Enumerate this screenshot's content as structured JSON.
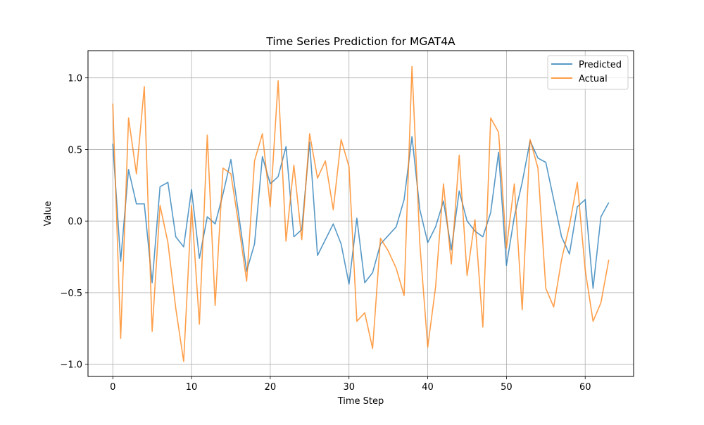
{
  "chart_data": {
    "type": "line",
    "title": "Time Series Prediction for MGAT4A",
    "xlabel": "Time Step",
    "ylabel": "Value",
    "xlim": [
      -3.15,
      66.15
    ],
    "ylim": [
      -1.085,
      1.19
    ],
    "x_ticks": [
      0,
      10,
      20,
      30,
      40,
      50,
      60
    ],
    "y_ticks": [
      -1.0,
      -0.5,
      0.0,
      0.5,
      1.0
    ],
    "y_tick_labels": [
      "−1.0",
      "−0.5",
      "0.0",
      "0.5",
      "1.0"
    ],
    "grid": true,
    "legend_position": "top-right",
    "series": [
      {
        "name": "Predicted",
        "color": "#1f77b4",
        "values": [
          0.54,
          -0.28,
          0.36,
          0.12,
          0.12,
          -0.43,
          0.24,
          0.27,
          -0.11,
          -0.18,
          0.22,
          -0.26,
          0.03,
          -0.02,
          0.19,
          0.43,
          0.04,
          -0.35,
          -0.16,
          0.45,
          0.26,
          0.31,
          0.52,
          -0.11,
          -0.06,
          0.55,
          -0.24,
          -0.13,
          -0.02,
          -0.16,
          -0.44,
          0.02,
          -0.43,
          -0.36,
          -0.16,
          -0.1,
          -0.04,
          0.15,
          0.59,
          0.08,
          -0.15,
          -0.04,
          0.14,
          -0.2,
          0.21,
          0.0,
          -0.07,
          -0.11,
          0.06,
          0.48,
          -0.31,
          0.03,
          0.27,
          0.56,
          0.44,
          0.41,
          0.15,
          -0.11,
          -0.23,
          0.1,
          0.15,
          -0.47,
          0.03,
          0.13
        ]
      },
      {
        "name": "Actual",
        "color": "#ff7f0e",
        "values": [
          0.82,
          -0.82,
          0.72,
          0.33,
          0.94,
          -0.77,
          0.11,
          -0.15,
          -0.61,
          -0.98,
          0.11,
          -0.72,
          0.6,
          -0.59,
          0.37,
          0.33,
          -0.03,
          -0.42,
          0.42,
          0.61,
          0.1,
          0.98,
          -0.14,
          0.39,
          -0.13,
          0.61,
          0.3,
          0.42,
          0.08,
          0.57,
          0.38,
          -0.7,
          -0.64,
          -0.89,
          -0.12,
          -0.21,
          -0.33,
          -0.52,
          1.08,
          -0.16,
          -0.88,
          -0.46,
          0.26,
          -0.3,
          0.46,
          -0.38,
          0.01,
          -0.74,
          0.72,
          0.62,
          -0.19,
          0.26,
          -0.62,
          0.57,
          0.37,
          -0.47,
          -0.6,
          -0.27,
          -0.03,
          0.27,
          -0.34,
          -0.7,
          -0.57,
          -0.27
        ]
      }
    ]
  }
}
